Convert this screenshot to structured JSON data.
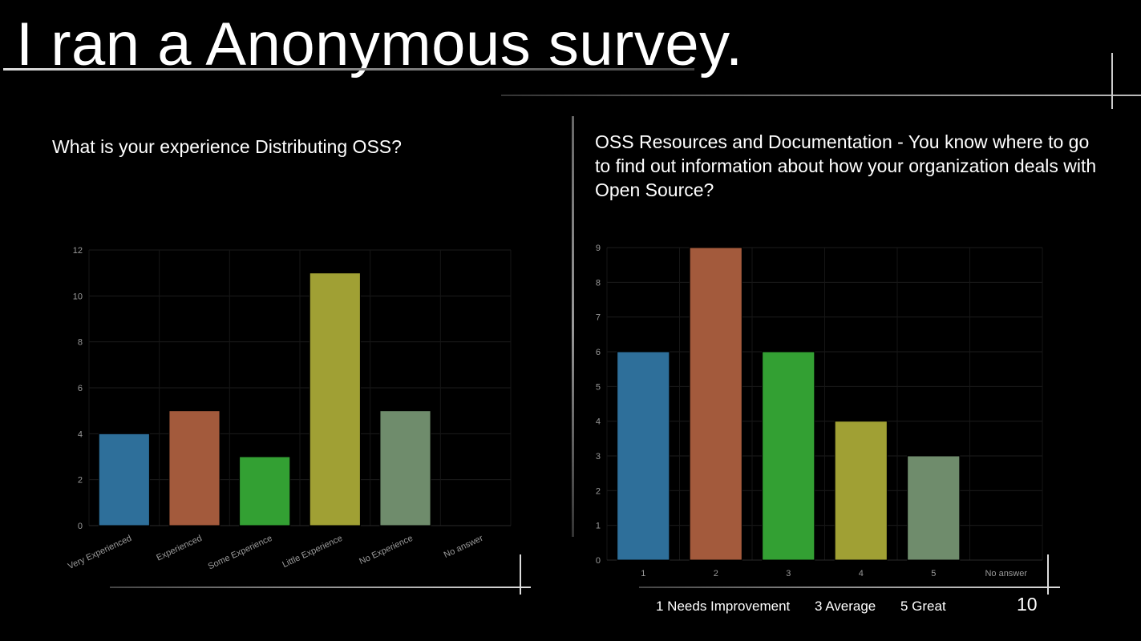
{
  "slide": {
    "title": "I ran a Anonymous survey.",
    "page_number": "10",
    "legend": [
      "1 Needs Improvement",
      "3  Average",
      "5 Great"
    ]
  },
  "chart_data": [
    {
      "type": "bar",
      "title": "What is your experience Distributing OSS?",
      "categories": [
        "Very Experienced",
        "Experienced",
        "Some Experience",
        "Little Experience",
        "No Experience",
        "No answer"
      ],
      "values": [
        4,
        5,
        3,
        11,
        5,
        0
      ],
      "colors": [
        "#2e6f9a",
        "#a35a3c",
        "#33a033",
        "#a0a034",
        "#6f8c6c",
        "#444444"
      ],
      "ylim": [
        0,
        12
      ],
      "yticks": [
        0,
        2,
        4,
        6,
        8,
        10,
        12
      ],
      "grid": true
    },
    {
      "type": "bar",
      "title": "OSS Resources and Documentation - You know where to go to find out information about how your organization deals with Open Source?",
      "categories": [
        "1",
        "2",
        "3",
        "4",
        "5",
        "No answer"
      ],
      "values": [
        6,
        9,
        6,
        4,
        3,
        0
      ],
      "colors": [
        "#2e6f9a",
        "#a35a3c",
        "#33a033",
        "#a0a034",
        "#6f8c6c",
        "#444444"
      ],
      "ylim": [
        0,
        9
      ],
      "yticks": [
        0,
        1,
        2,
        3,
        4,
        5,
        6,
        7,
        8,
        9
      ],
      "grid": true
    }
  ]
}
